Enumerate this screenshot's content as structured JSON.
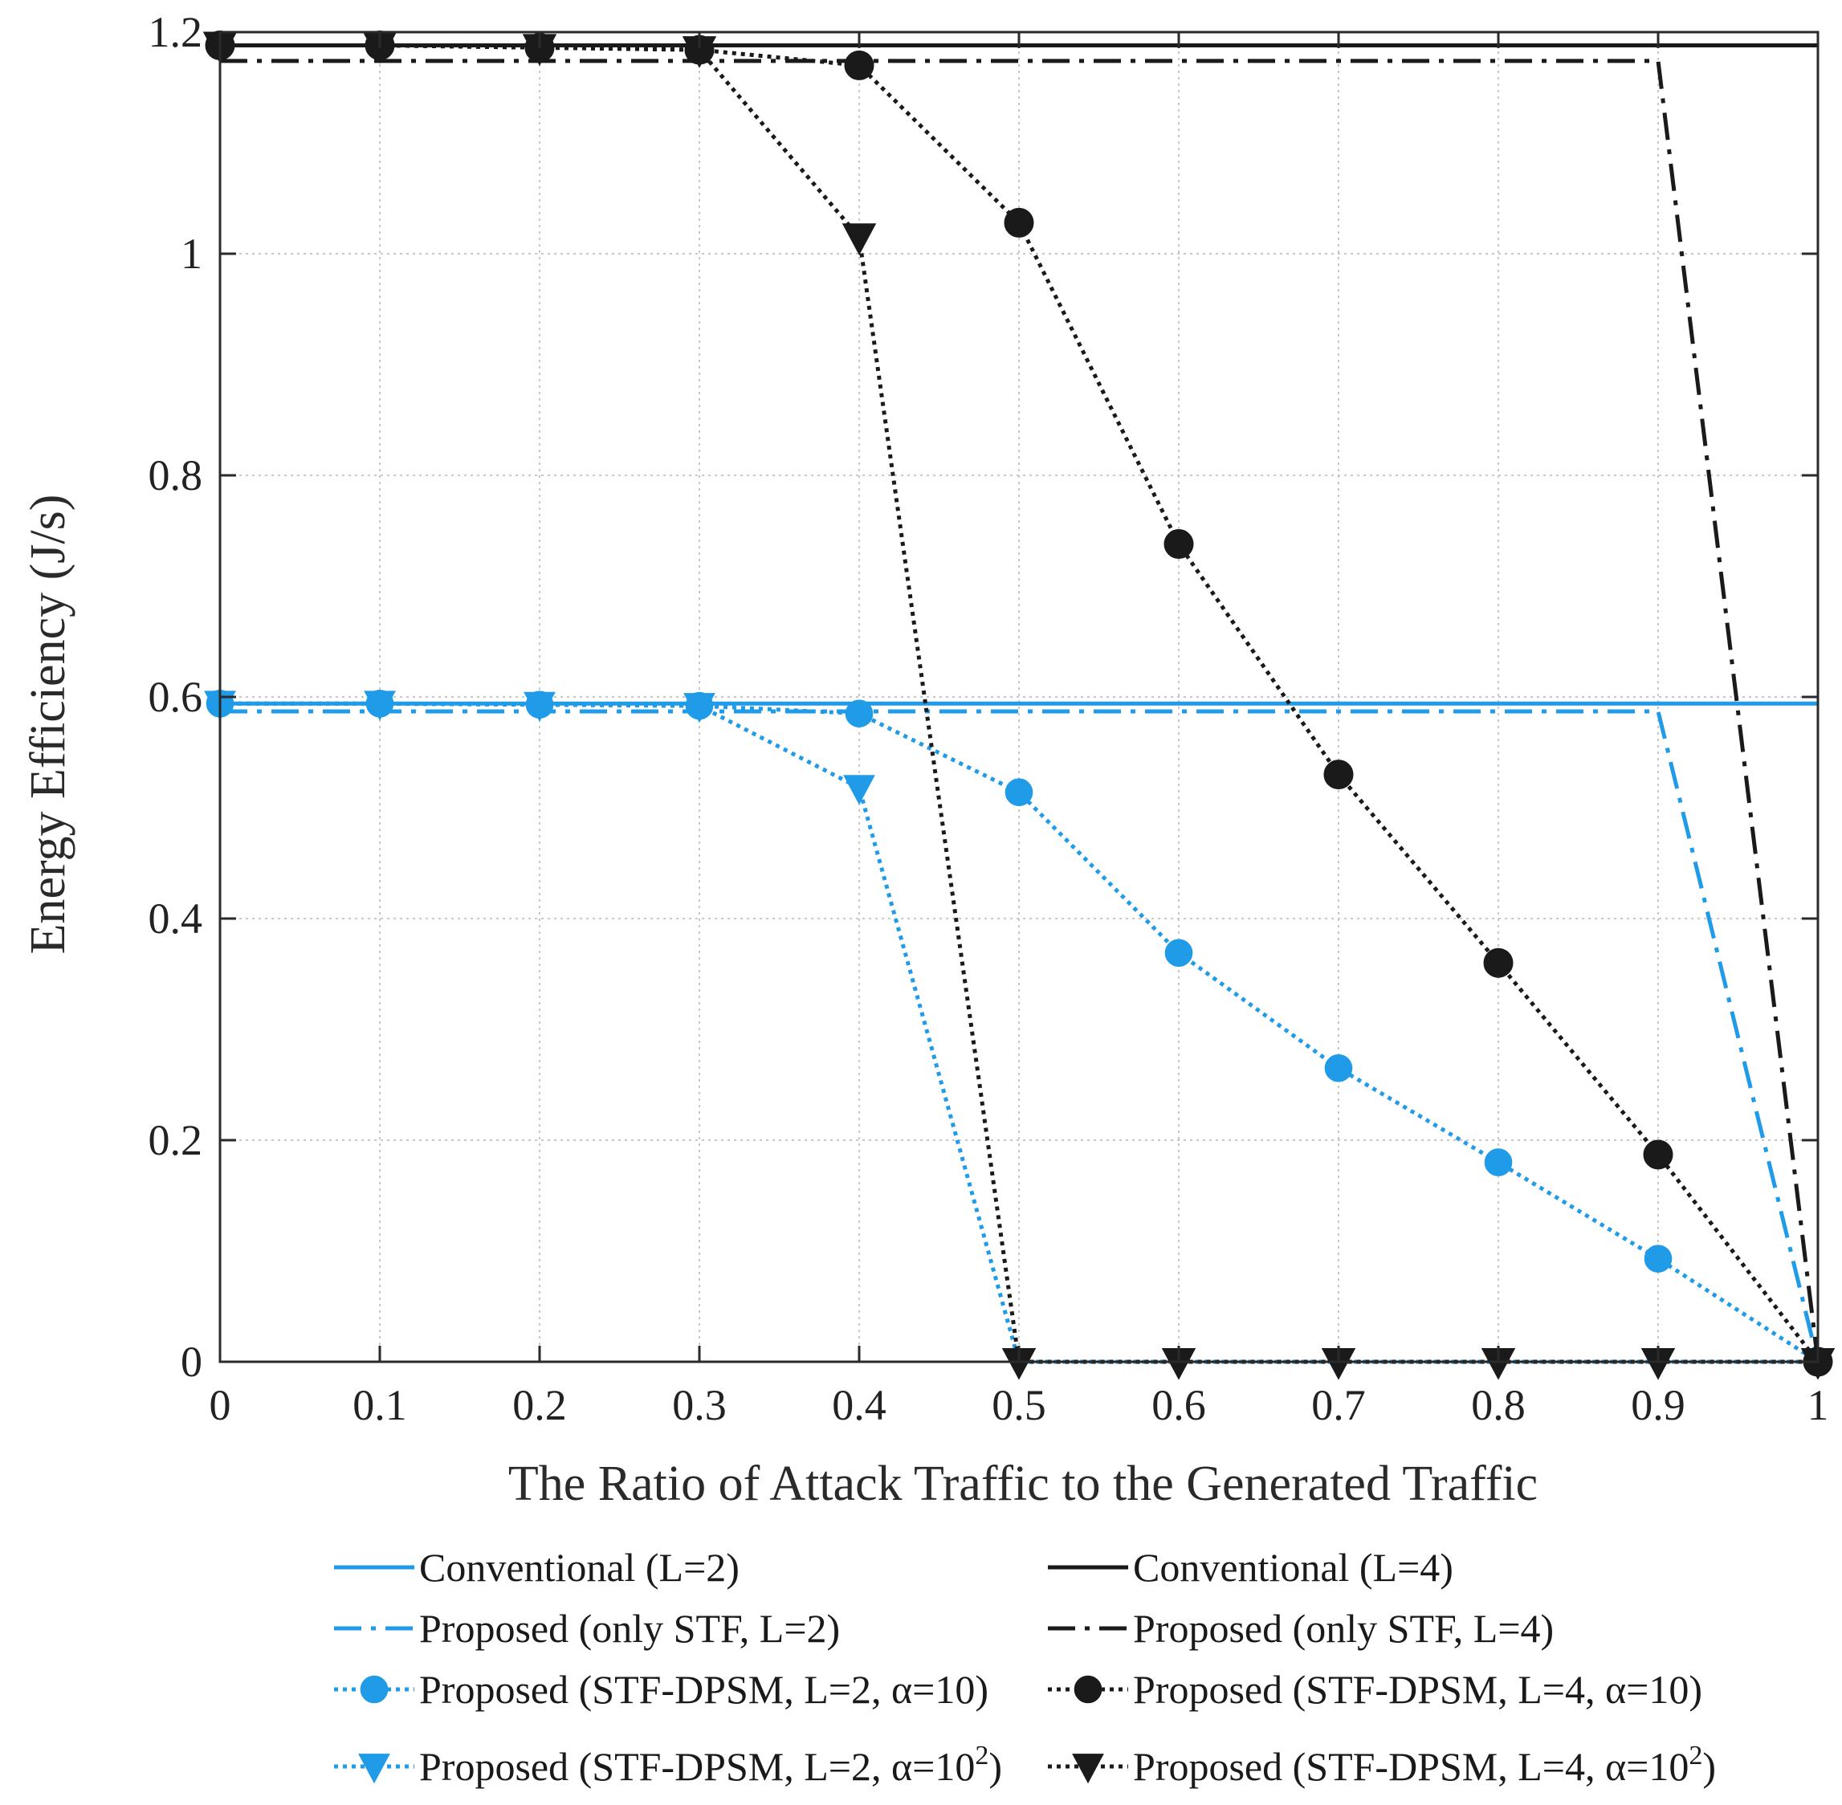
{
  "chart_data": {
    "type": "line",
    "title": "",
    "xlabel": "The Ratio of Attack Traffic to the Generated Traffic",
    "ylabel": "Energy Efficiency (J/s)",
    "xlim": [
      0,
      1
    ],
    "ylim": [
      0,
      1.2
    ],
    "grid": true,
    "legend_position": "bottom",
    "x_ticks": [
      0,
      0.1,
      0.2,
      0.3,
      0.4,
      0.5,
      0.6,
      0.7,
      0.8,
      0.9,
      1
    ],
    "x_tick_labels": [
      "0",
      "0.1",
      "0.2",
      "0.3",
      "0.4",
      "0.5",
      "0.6",
      "0.7",
      "0.8",
      "0.9",
      "1"
    ],
    "y_ticks": [
      0,
      0.2,
      0.4,
      0.6,
      0.8,
      1,
      1.2
    ],
    "y_tick_labels": [
      "0",
      "0.2",
      "0.4",
      "0.6",
      "0.8",
      "1",
      "1.2"
    ],
    "colors": {
      "blue": "#1f9be8",
      "black": "#1a1a1a"
    },
    "series": [
      {
        "name": "Conventional (L=2)",
        "legend_main": "Conventional (L=2)",
        "legend_sup": "",
        "legend_tail": "",
        "color": "#1f9be8",
        "line": "solid",
        "marker": "none",
        "x": [
          0,
          1
        ],
        "y": [
          0.594,
          0.594
        ]
      },
      {
        "name": "Conventional (L=4)",
        "legend_main": "Conventional (L=4)",
        "legend_sup": "",
        "legend_tail": "",
        "color": "#1a1a1a",
        "line": "solid",
        "marker": "none",
        "x": [
          0,
          1
        ],
        "y": [
          1.188,
          1.188
        ]
      },
      {
        "name": "Proposed (only STF, L=2)",
        "legend_main": "Proposed (only STF, L=2)",
        "legend_sup": "",
        "legend_tail": "",
        "color": "#1f9be8",
        "line": "dashdot",
        "marker": "none",
        "x": [
          0,
          0.9,
          1
        ],
        "y": [
          0.587,
          0.587,
          0
        ]
      },
      {
        "name": "Proposed (only STF, L=4)",
        "legend_main": "Proposed (only STF, L=4)",
        "legend_sup": "",
        "legend_tail": "",
        "color": "#1a1a1a",
        "line": "dashdot",
        "marker": "none",
        "x": [
          0,
          0.9,
          1
        ],
        "y": [
          1.174,
          1.174,
          0
        ]
      },
      {
        "name": "Proposed (STF-DPSM, L=2, α=10)",
        "legend_main": "Proposed (STF-DPSM, L=2, α=10)",
        "legend_sup": "",
        "legend_tail": "",
        "color": "#1f9be8",
        "line": "dotted",
        "marker": "circle",
        "x": [
          0,
          0.1,
          0.2,
          0.3,
          0.4,
          0.5,
          0.6,
          0.7,
          0.8,
          0.9,
          1
        ],
        "y": [
          0.594,
          0.594,
          0.593,
          0.592,
          0.585,
          0.514,
          0.369,
          0.265,
          0.18,
          0.093,
          0
        ]
      },
      {
        "name": "Proposed (STF-DPSM, L=4, α=10)",
        "legend_main": "Proposed (STF-DPSM, L=4, α=10)",
        "legend_sup": "",
        "legend_tail": "",
        "color": "#1a1a1a",
        "line": "dotted",
        "marker": "circle",
        "x": [
          0,
          0.1,
          0.2,
          0.3,
          0.4,
          0.5,
          0.6,
          0.7,
          0.8,
          0.9,
          1
        ],
        "y": [
          1.188,
          1.188,
          1.186,
          1.184,
          1.17,
          1.028,
          0.738,
          0.53,
          0.36,
          0.187,
          0
        ]
      },
      {
        "name": "Proposed (STF-DPSM, L=2, α=10^2)",
        "legend_main": "Proposed (STF-DPSM, L=2, α=10",
        "legend_sup": "2",
        "legend_tail": ")",
        "color": "#1f9be8",
        "line": "dotted",
        "marker": "triangle-down",
        "x": [
          0,
          0.1,
          0.2,
          0.3,
          0.4,
          0.5,
          0.6,
          0.7,
          0.8,
          0.9,
          1
        ],
        "y": [
          0.594,
          0.594,
          0.593,
          0.592,
          0.518,
          0,
          0,
          0,
          0,
          0,
          0
        ]
      },
      {
        "name": "Proposed (STF-DPSM, L=4, α=10^2)",
        "legend_main": "Proposed (STF-DPSM, L=4, α=10",
        "legend_sup": "2",
        "legend_tail": ")",
        "color": "#1a1a1a",
        "line": "dotted",
        "marker": "triangle-down",
        "x": [
          0,
          0.1,
          0.2,
          0.3,
          0.4,
          0.5,
          0.6,
          0.7,
          0.8,
          0.9,
          1
        ],
        "y": [
          1.188,
          1.188,
          1.186,
          1.184,
          1.015,
          0,
          0,
          0,
          0,
          0,
          0
        ]
      }
    ],
    "legend_order": [
      0,
      1,
      2,
      3,
      4,
      5,
      6,
      7
    ]
  }
}
